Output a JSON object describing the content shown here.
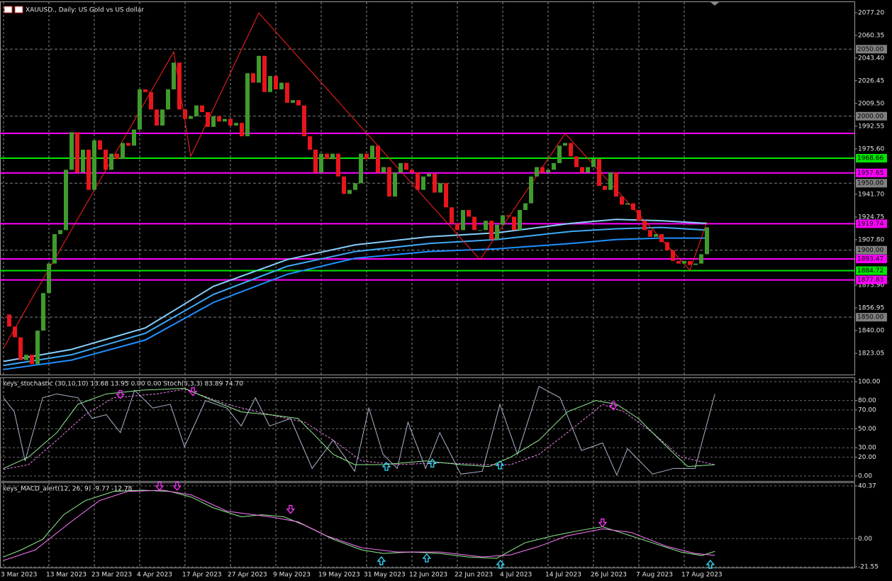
{
  "chart_data": [
    {
      "type": "candlestick",
      "title": "XAUUSD., Daily: US Gold vs US dollar",
      "up_color": "#3f9b2d",
      "down_color": "#e8161c",
      "close": [
        1852,
        1843,
        1835,
        1818,
        1822,
        1815,
        1840,
        1868,
        1890,
        1912,
        1915,
        1960,
        1988,
        1958,
        1975,
        1945,
        1982,
        1975,
        1960,
        1972,
        1968,
        1980,
        1978,
        1990,
        2020,
        2018,
        2005,
        1993,
        2005,
        2020,
        2040,
        2005,
        1998,
        2000,
        2008,
        2003,
        1992,
        2000,
        1996,
        1998,
        1993,
        1995,
        1985,
        2032,
        2025,
        2045,
        2018,
        2030,
        2020,
        2025,
        2010,
        2012,
        2008,
        1985,
        1975,
        1958,
        1972,
        1968,
        1972,
        1955,
        1942,
        1945,
        1950,
        1972,
        1968,
        1978,
        1958,
        1962,
        1940,
        1958,
        1965,
        1960,
        1958,
        1945,
        1955,
        1957,
        1943,
        1950,
        1932,
        1920,
        1915,
        1930,
        1925,
        1915,
        1915,
        1922,
        1908,
        1919,
        1926,
        1925,
        1915,
        1930,
        1935,
        1955,
        1962,
        1958,
        1960,
        1965,
        1978,
        1980,
        1970,
        1962,
        1958,
        1962,
        1968,
        1948,
        1945,
        1958,
        1940,
        1934,
        1935,
        1930,
        1922,
        1915,
        1910,
        1912,
        1906,
        1900,
        1892,
        1890,
        1892,
        1889,
        1890,
        1897,
        1917
      ],
      "ylim": [
        1807.2,
        2085.1
      ],
      "yticks": [
        {
          "value": 2077.2,
          "label": "2077.20"
        },
        2060.35,
        {
          "value": 2043.4,
          "label": "2043.40"
        },
        2026.45,
        {
          "value": 2009.5,
          "label": "2009.50"
        },
        1992.55,
        {
          "value": 1975.6,
          "label": "1975.60"
        },
        {
          "value": 1941.7,
          "label": "1941.70"
        },
        1924.75,
        {
          "value": 1907.8,
          "label": "1907.80"
        },
        {
          "value": 1873.9,
          "label": "1873.90"
        },
        1856.95,
        {
          "value": 1840,
          "label": "1840.00"
        },
        1823.05
      ],
      "levels": [
        {
          "value": 2050,
          "label": "2050.00",
          "color": "#7f7f7f",
          "style": "dashed",
          "show_label": true
        },
        {
          "value": 2000,
          "label": "2000.00",
          "color": "#7f7f7f",
          "style": "dashed",
          "show_label": true
        },
        {
          "value": 1987.2,
          "color": "#ff00ff",
          "style": "solid",
          "show_label": false
        },
        {
          "value": 1968.66,
          "color": "#00e600",
          "style": "solid",
          "show_label": true
        },
        {
          "value": 1957.65,
          "color": "#ff00ff",
          "style": "solid",
          "show_label": true
        },
        {
          "value": 1950,
          "label": "1950.00",
          "color": "#7f7f7f",
          "style": "dashed",
          "show_label": true
        },
        {
          "value": 1919.74,
          "color": "#ff00ff",
          "style": "solid",
          "show_label": true
        },
        {
          "value": 1900,
          "label": "1900.00",
          "color": "#7f7f7f",
          "style": "dashed",
          "show_label": true
        },
        {
          "value": 1893.47,
          "color": "#ff00ff",
          "style": "solid",
          "show_label": true
        },
        {
          "value": 1884.72,
          "color": "#00e600",
          "style": "solid",
          "show_label": true
        },
        {
          "value": 1877.83,
          "color": "#ff00ff",
          "style": "solid",
          "show_label": true
        },
        {
          "value": 1850,
          "label": "1850.00",
          "color": "#7f7f7f",
          "style": "dashed",
          "show_label": true
        }
      ],
      "series": [
        {
          "color": "#87cefa",
          "x": [
            0,
            12,
            25,
            37,
            50,
            62,
            75,
            87,
            100,
            108,
            116,
            124
          ],
          "values": [
            1817,
            1826,
            1842,
            1873,
            1893,
            1904,
            1910,
            1913,
            1920,
            1923,
            1922,
            1920
          ]
        },
        {
          "color": "#3fa9f5",
          "x": [
            0,
            12,
            25,
            37,
            50,
            62,
            75,
            87,
            100,
            108,
            116,
            124
          ],
          "values": [
            1814,
            1822,
            1838,
            1867,
            1888,
            1899,
            1905,
            1908,
            1914,
            1916,
            1917,
            1915
          ]
        },
        {
          "color": "#1e90ff",
          "x": [
            0,
            12,
            25,
            37,
            50,
            62,
            75,
            87,
            100,
            108,
            116,
            124
          ],
          "values": [
            1811,
            1818,
            1833,
            1861,
            1882,
            1894,
            1899,
            1901,
            1905,
            1908,
            1909,
            1909
          ]
        },
        {
          "color": "#ff2020",
          "x": [
            0,
            30,
            33,
            45,
            84,
            99,
            121,
            124
          ],
          "values": [
            1827,
            2048,
            1970,
            2077,
            1893,
            1987,
            1885,
            1921
          ]
        }
      ]
    },
    {
      "type": "line",
      "title": "keys_stochastic (30,10,10) 13.68 13.95 0.00 0.00 Stoch(5,3,3) 83.89 74.70",
      "ylim": [
        -5.3,
        103.8
      ],
      "yticks": [
        {
          "value": 100,
          "label": "100.00"
        },
        {
          "value": 80,
          "label": "80.00"
        },
        {
          "value": 70,
          "label": "70.00"
        },
        {
          "value": 50,
          "label": "50.00"
        },
        {
          "value": 30,
          "label": "30.00"
        },
        {
          "value": 20,
          "label": "20.00"
        },
        {
          "value": 0,
          "label": "0.00"
        }
      ],
      "series": [
        {
          "color": "#a9b4cc",
          "dashed": false,
          "x": [
            0,
            1.9,
            3.8,
            6.9,
            9.4,
            13.1,
            15.6,
            18.1,
            20.6,
            23.1,
            26.3,
            29.4,
            31.9,
            35.6,
            39.4,
            41.9,
            44.4,
            46.9,
            50.6,
            54.4,
            58.1,
            61.9,
            64.4,
            66.9,
            69.4,
            71.3,
            74.4,
            76.9,
            80.6,
            84.4,
            87.5,
            90.6,
            94.4,
            98.1,
            101.9,
            105.6,
            108.1,
            110,
            114.4,
            118.1,
            121.9,
            125.4
          ],
          "values": [
            83,
            68,
            16,
            83,
            87,
            83,
            61,
            65,
            46,
            91,
            72,
            76,
            31,
            80,
            72,
            53,
            83,
            53,
            61,
            8,
            38,
            5,
            72,
            23,
            8,
            57,
            8,
            46,
            2,
            5,
            76,
            23,
            95,
            83,
            27,
            35,
            1,
            29,
            2,
            8,
            8,
            87
          ]
        },
        {
          "color": "#ee82ee",
          "dashed": true,
          "x": [
            0,
            4.4,
            9.4,
            14.4,
            19.4,
            26.9,
            31.9,
            39.4,
            46.9,
            53.1,
            58.1,
            63.1,
            69.4,
            76.9,
            85.6,
            89.4,
            94.4,
            99.4,
            105.6,
            109.4,
            114.4,
            119.4,
            125.4
          ],
          "values": [
            7,
            12,
            38,
            65,
            83,
            87,
            92,
            76,
            65,
            57,
            38,
            16,
            12,
            14,
            12,
            12,
            23,
            46,
            76,
            68,
            46,
            20,
            12
          ]
        },
        {
          "color": "#90ee90",
          "dashed": false,
          "x": [
            0,
            4.4,
            9.4,
            13.1,
            18.1,
            24.4,
            31.9,
            36.9,
            41.9,
            46.9,
            51.9,
            54.4,
            58.1,
            61.9,
            66.9,
            74.4,
            80.6,
            85.6,
            89.4,
            94.4,
            99.4,
            104.4,
            108.1,
            111.9,
            116.9,
            120.6,
            125.4
          ],
          "values": [
            8,
            20,
            46,
            76,
            87,
            91,
            93,
            80,
            68,
            65,
            61,
            46,
            23,
            12,
            12,
            16,
            12,
            10,
            20,
            38,
            68,
            80,
            76,
            61,
            31,
            10,
            12
          ]
        }
      ],
      "signals": [
        {
          "x": 20.6,
          "y": 86,
          "direction": "down",
          "color": "#ff33ff"
        },
        {
          "x": 33.4,
          "y": 89,
          "direction": "down",
          "color": "#ff33ff"
        },
        {
          "x": 107.5,
          "y": 74,
          "direction": "down",
          "color": "#ff33ff"
        },
        {
          "x": 67.5,
          "y": 10.5,
          "direction": "up",
          "color": "#33e0ff"
        },
        {
          "x": 75.6,
          "y": 14,
          "direction": "up",
          "color": "#33e0ff"
        },
        {
          "x": 87.5,
          "y": 12,
          "direction": "up",
          "color": "#33e0ff"
        }
      ]
    },
    {
      "type": "line",
      "title": "keys_MACD_alert(12, 26, 9) -9.77 -12.78",
      "ylim": [
        -22.1,
        42.5
      ],
      "yticks": [
        40.37,
        {
          "value": 0,
          "label": "0.00"
        },
        -21.55
      ],
      "series": [
        {
          "color": "#90ee90",
          "dashed": false,
          "x": [
            0,
            3.1,
            6.9,
            10.6,
            14.4,
            19.4,
            24.4,
            29.4,
            33.1,
            36.9,
            41.9,
            45.6,
            49.4,
            53.1,
            58.1,
            63.1,
            66.9,
            71.9,
            76.9,
            81.9,
            86.9,
            91.9,
            96.9,
            101.9,
            105.6,
            109.4,
            114.4,
            119.4,
            123.1,
            125.4
          ],
          "values": [
            -14,
            -8.6,
            -0.5,
            18.3,
            29.1,
            36.1,
            37.1,
            36.1,
            31.8,
            23.7,
            16.7,
            18.3,
            16.7,
            10.2,
            -0.5,
            -8.6,
            -11.3,
            -10.2,
            -11.3,
            -14,
            -15.1,
            -3.2,
            2.2,
            6.5,
            9.1,
            3.8,
            -3.2,
            -10.2,
            -12.9,
            -9.77
          ]
        },
        {
          "color": "#ff77ff",
          "dashed": false,
          "x": [
            0,
            5.6,
            11.9,
            16.9,
            21.9,
            28.1,
            33.1,
            39.4,
            46.9,
            51.9,
            56.9,
            63.1,
            69.4,
            76.9,
            84.4,
            89.4,
            94.4,
            99.4,
            105.6,
            110.6,
            116.9,
            121.9,
            125.4
          ],
          "values": [
            -16.7,
            -8.6,
            12.9,
            29.1,
            36.1,
            37.1,
            33.4,
            21,
            16.7,
            12.9,
            2.2,
            -7,
            -10.2,
            -10.2,
            -14,
            -12.4,
            -5.9,
            2.2,
            7.5,
            4.8,
            -5.9,
            -11.3,
            -12.78
          ]
        }
      ],
      "signals": [
        {
          "x": 27.5,
          "y": 39.8,
          "direction": "down",
          "color": "#ff33ff"
        },
        {
          "x": 30.6,
          "y": 39.8,
          "direction": "down",
          "color": "#ff33ff"
        },
        {
          "x": 50.6,
          "y": 22.1,
          "direction": "down",
          "color": "#ff33ff"
        },
        {
          "x": 105.6,
          "y": 11.8,
          "direction": "down",
          "color": "#ff33ff"
        },
        {
          "x": 66.6,
          "y": -16.7,
          "direction": "up",
          "color": "#33e0ff"
        },
        {
          "x": 74.6,
          "y": -14.5,
          "direction": "up",
          "color": "#33e0ff"
        },
        {
          "x": 87.6,
          "y": -19.4,
          "direction": "up",
          "color": "#33e0ff"
        },
        {
          "x": 124.6,
          "y": -19.4,
          "direction": "up",
          "color": "#33e0ff"
        }
      ],
      "xticks": [
        {
          "value": 0,
          "label": "3 Mar 2023"
        },
        {
          "value": 8,
          "label": "13 Mar 2023"
        },
        {
          "value": 16,
          "label": "23 Mar 2023"
        },
        {
          "value": 24,
          "label": "4 Apr 2023"
        },
        {
          "value": 32,
          "label": "17 Apr 2023"
        },
        {
          "value": 40,
          "label": "27 Apr 2023"
        },
        {
          "value": 48,
          "label": "9 May 2023"
        },
        {
          "value": 56,
          "label": "19 May 2023"
        },
        {
          "value": 64,
          "label": "31 May 2023"
        },
        {
          "value": 72,
          "label": "12 Jun 2023"
        },
        {
          "value": 80,
          "label": "22 Jun 2023"
        },
        {
          "value": 88,
          "label": "4 Jul 2023"
        },
        {
          "value": 96,
          "label": "14 Jul 2023"
        },
        {
          "value": 104,
          "label": "26 Jul 2023"
        },
        {
          "value": 112,
          "label": "7 Aug 2023"
        },
        {
          "value": 120,
          "label": "17 Aug 2023"
        }
      ]
    }
  ]
}
